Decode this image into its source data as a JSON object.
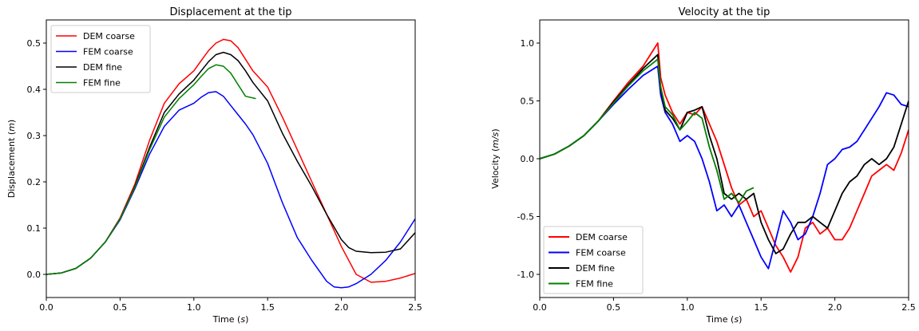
{
  "chart_data": [
    {
      "type": "line",
      "title": "Displacement at the tip",
      "xlabel": "Time (s)",
      "xlabel_parts": [
        "Time (",
        "s",
        ")"
      ],
      "ylabel": "Displacement (m)",
      "ylabel_parts": [
        "Displacement (",
        "m",
        ")"
      ],
      "xlim": [
        0.0,
        2.5
      ],
      "ylim": [
        -0.05,
        0.55
      ],
      "xticks": [
        "0.0",
        "0.5",
        "1.0",
        "1.5",
        "2.0",
        "2.5"
      ],
      "yticks": [
        "0.0",
        "0.1",
        "0.2",
        "0.3",
        "0.4",
        "0.5"
      ],
      "legend_position": "top-left",
      "series": [
        {
          "name": "DEM coarse",
          "color": "#ff0000",
          "x": [
            0,
            0.1,
            0.2,
            0.3,
            0.4,
            0.5,
            0.6,
            0.7,
            0.8,
            0.9,
            1.0,
            1.05,
            1.1,
            1.15,
            1.2,
            1.25,
            1.3,
            1.35,
            1.4,
            1.5,
            1.6,
            1.7,
            1.8,
            1.9,
            2.0,
            2.1,
            2.2,
            2.3,
            2.4,
            2.5
          ],
          "y": [
            0,
            0.003,
            0.013,
            0.035,
            0.07,
            0.122,
            0.195,
            0.29,
            0.37,
            0.412,
            0.44,
            0.462,
            0.484,
            0.5,
            0.508,
            0.505,
            0.49,
            0.465,
            0.44,
            0.405,
            0.34,
            0.27,
            0.2,
            0.13,
            0.06,
            0.0,
            -0.017,
            -0.015,
            -0.008,
            0.002
          ]
        },
        {
          "name": "FEM coarse",
          "color": "#0000ff",
          "x": [
            0,
            0.1,
            0.2,
            0.3,
            0.4,
            0.5,
            0.6,
            0.7,
            0.8,
            0.9,
            1.0,
            1.05,
            1.1,
            1.15,
            1.2,
            1.25,
            1.3,
            1.35,
            1.4,
            1.5,
            1.6,
            1.7,
            1.8,
            1.9,
            1.95,
            2.0,
            2.05,
            2.1,
            2.2,
            2.3,
            2.4,
            2.5
          ],
          "y": [
            0,
            0.003,
            0.013,
            0.035,
            0.07,
            0.118,
            0.185,
            0.26,
            0.32,
            0.355,
            0.37,
            0.383,
            0.393,
            0.395,
            0.385,
            0.365,
            0.345,
            0.325,
            0.302,
            0.24,
            0.155,
            0.08,
            0.03,
            -0.015,
            -0.027,
            -0.029,
            -0.027,
            -0.02,
            0.0,
            0.03,
            0.07,
            0.12
          ]
        },
        {
          "name": "DEM fine",
          "color": "#000000",
          "x": [
            0,
            0.1,
            0.2,
            0.3,
            0.4,
            0.5,
            0.6,
            0.7,
            0.8,
            0.9,
            1.0,
            1.05,
            1.1,
            1.15,
            1.2,
            1.25,
            1.3,
            1.35,
            1.4,
            1.5,
            1.6,
            1.7,
            1.8,
            1.9,
            2.0,
            2.05,
            2.1,
            2.2,
            2.3,
            2.4,
            2.5
          ],
          "y": [
            0,
            0.003,
            0.013,
            0.035,
            0.07,
            0.12,
            0.19,
            0.275,
            0.35,
            0.39,
            0.42,
            0.44,
            0.46,
            0.475,
            0.48,
            0.475,
            0.462,
            0.44,
            0.415,
            0.375,
            0.305,
            0.245,
            0.19,
            0.13,
            0.075,
            0.058,
            0.05,
            0.047,
            0.048,
            0.055,
            0.09
          ]
        },
        {
          "name": "FEM fine",
          "color": "#008000",
          "x": [
            0,
            0.1,
            0.2,
            0.3,
            0.4,
            0.5,
            0.6,
            0.7,
            0.8,
            0.9,
            1.0,
            1.05,
            1.1,
            1.15,
            1.2,
            1.25,
            1.3,
            1.35,
            1.42
          ],
          "y": [
            0,
            0.003,
            0.013,
            0.035,
            0.07,
            0.12,
            0.188,
            0.27,
            0.34,
            0.38,
            0.41,
            0.428,
            0.445,
            0.453,
            0.45,
            0.435,
            0.41,
            0.385,
            0.38
          ]
        }
      ]
    },
    {
      "type": "line",
      "title": "Velocity at the tip",
      "xlabel": "Time (s)",
      "xlabel_parts": [
        "Time (",
        "s",
        ")"
      ],
      "ylabel": "Velocity (m/s)",
      "ylabel_parts": [
        "Velocity (",
        "m/s",
        ")"
      ],
      "xlim": [
        0.0,
        2.5
      ],
      "ylim": [
        -1.2,
        1.2
      ],
      "xticks": [
        "0.0",
        "0.5",
        "1.0",
        "1.5",
        "2.0",
        "2.5"
      ],
      "yticks": [
        "-1.0",
        "-0.5",
        "0.0",
        "0.5",
        "1.0"
      ],
      "legend_position": "bottom-left",
      "series": [
        {
          "name": "DEM coarse",
          "color": "#ff0000",
          "x": [
            0,
            0.1,
            0.2,
            0.3,
            0.4,
            0.5,
            0.6,
            0.7,
            0.8,
            0.82,
            0.85,
            0.9,
            0.95,
            1.0,
            1.05,
            1.1,
            1.15,
            1.2,
            1.25,
            1.3,
            1.35,
            1.4,
            1.45,
            1.5,
            1.55,
            1.6,
            1.65,
            1.7,
            1.75,
            1.8,
            1.85,
            1.9,
            1.95,
            2.0,
            2.05,
            2.1,
            2.15,
            2.2,
            2.25,
            2.3,
            2.35,
            2.4,
            2.45,
            2.5
          ],
          "y": [
            0,
            0.04,
            0.11,
            0.2,
            0.33,
            0.5,
            0.66,
            0.8,
            1.0,
            0.7,
            0.55,
            0.4,
            0.3,
            0.4,
            0.38,
            0.45,
            0.3,
            0.15,
            -0.05,
            -0.25,
            -0.4,
            -0.35,
            -0.5,
            -0.45,
            -0.6,
            -0.75,
            -0.85,
            -0.98,
            -0.85,
            -0.6,
            -0.55,
            -0.65,
            -0.6,
            -0.7,
            -0.7,
            -0.6,
            -0.45,
            -0.3,
            -0.15,
            -0.1,
            -0.05,
            -0.1,
            0.05,
            0.25
          ]
        },
        {
          "name": "FEM coarse",
          "color": "#0000ff",
          "x": [
            0,
            0.1,
            0.2,
            0.3,
            0.4,
            0.5,
            0.6,
            0.7,
            0.8,
            0.82,
            0.85,
            0.9,
            0.95,
            1.0,
            1.05,
            1.1,
            1.15,
            1.2,
            1.25,
            1.3,
            1.35,
            1.4,
            1.45,
            1.5,
            1.55,
            1.6,
            1.65,
            1.7,
            1.75,
            1.8,
            1.85,
            1.9,
            1.95,
            2.0,
            2.05,
            2.1,
            2.15,
            2.2,
            2.25,
            2.3,
            2.35,
            2.4,
            2.45,
            2.5
          ],
          "y": [
            0,
            0.04,
            0.11,
            0.2,
            0.33,
            0.47,
            0.6,
            0.72,
            0.8,
            0.55,
            0.4,
            0.3,
            0.15,
            0.2,
            0.15,
            0.0,
            -0.2,
            -0.45,
            -0.4,
            -0.5,
            -0.4,
            -0.55,
            -0.7,
            -0.85,
            -0.95,
            -0.7,
            -0.45,
            -0.55,
            -0.7,
            -0.65,
            -0.5,
            -0.3,
            -0.05,
            0.0,
            0.08,
            0.1,
            0.15,
            0.25,
            0.35,
            0.45,
            0.57,
            0.55,
            0.47,
            0.45
          ]
        },
        {
          "name": "DEM fine",
          "color": "#000000",
          "x": [
            0,
            0.1,
            0.2,
            0.3,
            0.4,
            0.5,
            0.6,
            0.7,
            0.8,
            0.82,
            0.85,
            0.9,
            0.95,
            1.0,
            1.05,
            1.1,
            1.15,
            1.2,
            1.25,
            1.3,
            1.35,
            1.4,
            1.45,
            1.5,
            1.55,
            1.6,
            1.65,
            1.7,
            1.75,
            1.8,
            1.85,
            1.9,
            1.95,
            2.0,
            2.05,
            2.1,
            2.15,
            2.2,
            2.25,
            2.3,
            2.35,
            2.4,
            2.45,
            2.5
          ],
          "y": [
            0,
            0.04,
            0.11,
            0.2,
            0.33,
            0.49,
            0.64,
            0.78,
            0.9,
            0.6,
            0.42,
            0.35,
            0.25,
            0.4,
            0.42,
            0.45,
            0.2,
            0.0,
            -0.3,
            -0.35,
            -0.3,
            -0.35,
            -0.3,
            -0.55,
            -0.7,
            -0.82,
            -0.78,
            -0.65,
            -0.55,
            -0.55,
            -0.5,
            -0.55,
            -0.6,
            -0.45,
            -0.3,
            -0.2,
            -0.15,
            -0.05,
            0.0,
            -0.05,
            0.0,
            0.1,
            0.3,
            0.5
          ]
        },
        {
          "name": "FEM fine",
          "color": "#008000",
          "x": [
            0,
            0.1,
            0.2,
            0.3,
            0.4,
            0.5,
            0.6,
            0.7,
            0.8,
            0.82,
            0.85,
            0.9,
            0.95,
            1.0,
            1.05,
            1.1,
            1.15,
            1.2,
            1.25,
            1.3,
            1.35,
            1.4,
            1.45
          ],
          "y": [
            0,
            0.04,
            0.11,
            0.2,
            0.33,
            0.48,
            0.63,
            0.76,
            0.86,
            0.62,
            0.45,
            0.38,
            0.25,
            0.32,
            0.4,
            0.35,
            0.1,
            -0.1,
            -0.35,
            -0.3,
            -0.38,
            -0.28,
            -0.25
          ]
        }
      ]
    }
  ]
}
